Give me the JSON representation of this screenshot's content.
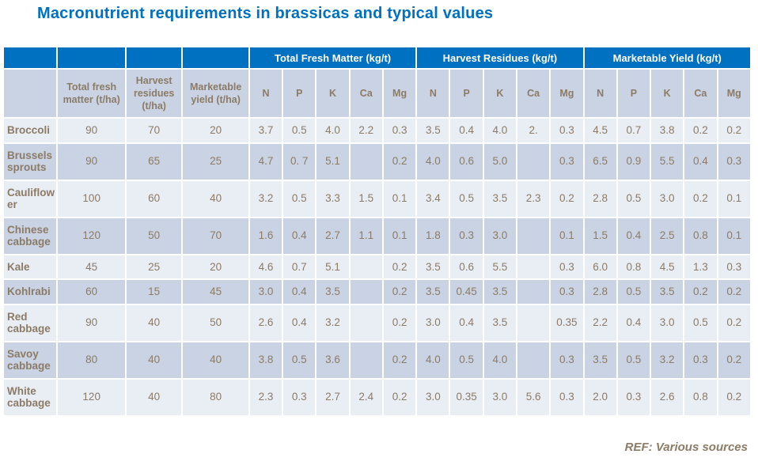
{
  "title": "Macronutrient requirements in brassicas and typical values",
  "footer": {
    "ref": "REF: Various sources"
  },
  "colors": {
    "accent_blue": "#0070C0",
    "subheader_bg": "#C9D3E3",
    "row_light_bg": "#E9EDF4",
    "row_dark_bg": "#C9D3E3",
    "text_brown": "#8C7B66"
  },
  "table": {
    "group_headers": [
      {
        "label": "",
        "span": 1
      },
      {
        "label": "",
        "span": 1
      },
      {
        "label": "",
        "span": 1
      },
      {
        "label": "",
        "span": 1
      },
      {
        "label": "Total Fresh Matter (kg/t)",
        "span": 5
      },
      {
        "label": "Harvest Residues (kg/t)",
        "span": 5
      },
      {
        "label": "Marketable Yield (kg/t)",
        "span": 5
      }
    ],
    "column_headers": [
      "",
      "Total fresh matter (t/ha)",
      "Harvest residues (t/ha)",
      "Marketable yield (t/ha)",
      "N",
      "P",
      "K",
      "Ca",
      "Mg",
      "N",
      "P",
      "K",
      "Ca",
      "Mg",
      "N",
      "P",
      "K",
      "Ca",
      "Mg"
    ],
    "rows": [
      {
        "crop": "Broccoli",
        "values": [
          "90",
          "70",
          "20",
          "3.7",
          "0.5",
          "4.0",
          "2.2",
          "0.3",
          "3.5",
          "0.4",
          "4.0",
          "2.",
          "0.3",
          "4.5",
          "0.7",
          "3.8",
          "0.2",
          "0.2"
        ]
      },
      {
        "crop": "Brussels sprouts",
        "values": [
          "90",
          "65",
          "25",
          "4.7",
          "0. 7",
          "5.1",
          "",
          "0.2",
          "4.0",
          "0.6",
          "5.0",
          "",
          "0.3",
          "6.5",
          "0.9",
          "5.5",
          "0.4",
          "0.3"
        ]
      },
      {
        "crop": "Cauliflower",
        "values": [
          "100",
          "60",
          "40",
          "3.2",
          "0.5",
          "3.3",
          "1.5",
          "0.1",
          "3.4",
          "0.5",
          "3.5",
          "2.3",
          "0.2",
          "2.8",
          "0.5",
          "3.0",
          "0.2",
          "0.1"
        ]
      },
      {
        "crop": "Chinese cabbage",
        "values": [
          "120",
          "50",
          "70",
          "1.6",
          "0.4",
          "2.7",
          "1.1",
          "0.1",
          "1.8",
          "0.3",
          "3.0",
          "",
          "0.1",
          "1.5",
          "0.4",
          "2.5",
          "0.8",
          "0.1"
        ]
      },
      {
        "crop": "Kale",
        "values": [
          "45",
          "25",
          "20",
          "4.6",
          "0.7",
          "5.1",
          "",
          "0.2",
          "3.5",
          "0.6",
          "5.5",
          "",
          "0.3",
          "6.0",
          "0.8",
          "4.5",
          "1.3",
          "0.3"
        ]
      },
      {
        "crop": "Kohlrabi",
        "values": [
          "60",
          "15",
          "45",
          "3.0",
          "0.4",
          "3.5",
          "",
          "0.2",
          "3.5",
          "0.45",
          "3.5",
          "",
          "0.3",
          "2.8",
          "0.5",
          "3.5",
          "0.2",
          "0.2"
        ]
      },
      {
        "crop": "Red cabbage",
        "values": [
          "90",
          "40",
          "50",
          "2.6",
          "0.4",
          "3.2",
          "",
          "0.2",
          "3.0",
          "0.4",
          "3.5",
          "",
          "0.35",
          "2.2",
          "0.4",
          "3.0",
          "0.5",
          "0.2"
        ]
      },
      {
        "crop": "Savoy cabbage",
        "values": [
          "80",
          "40",
          "40",
          "3.8",
          "0.5",
          "3.6",
          "",
          "0.2",
          "4.0",
          "0.5",
          "4.0",
          "",
          "0.3",
          "3.5",
          "0.5",
          "3.2",
          "0.3",
          "0.2"
        ]
      },
      {
        "crop": "White cabbage",
        "values": [
          "120",
          "40",
          "80",
          "2.3",
          "0.3",
          "2.7",
          "2.4",
          "0.2",
          "3.0",
          "0.35",
          "3.0",
          "5.6",
          "0.3",
          "2.0",
          "0.3",
          "2.6",
          "0.8",
          "0.2"
        ]
      }
    ]
  }
}
